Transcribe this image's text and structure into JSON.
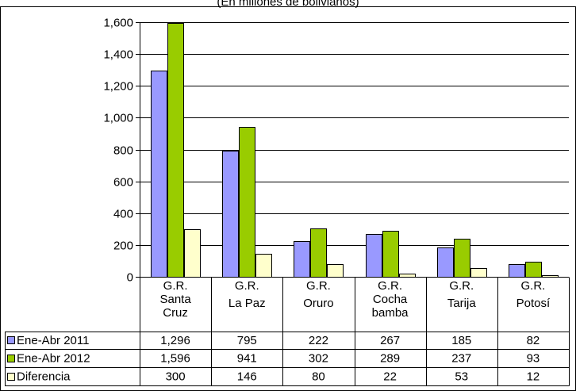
{
  "chart_data": {
    "type": "bar",
    "subtitle": "(En millones de bolivianos)",
    "title": "",
    "xlabel": "",
    "ylabel": "",
    "ylim": [
      0,
      1600
    ],
    "yticks": [
      0,
      200,
      400,
      600,
      800,
      1000,
      1200,
      1400,
      1600
    ],
    "ytick_labels": [
      "0",
      "200",
      "400",
      "600",
      "800",
      "1,000",
      "1,200",
      "1,400",
      "1,600"
    ],
    "grid": true,
    "legend": "data-table",
    "categories": [
      [
        "G.R.",
        "Santa",
        "Cruz"
      ],
      [
        "G.R.",
        "La Paz"
      ],
      [
        "G.R.",
        "Oruro"
      ],
      [
        "G.R.",
        "Cocha",
        "bamba"
      ],
      [
        "G.R.",
        "Tarija"
      ],
      [
        "G.R.",
        "Potosí"
      ]
    ],
    "series": [
      {
        "name": "Ene-Abr 2011",
        "color": "#9999ff",
        "values": [
          1296,
          795,
          222,
          267,
          185,
          82
        ],
        "labels": [
          "1,296",
          "795",
          "222",
          "267",
          "185",
          "82"
        ]
      },
      {
        "name": "Ene-Abr 2012",
        "color": "#99cc00",
        "values": [
          1596,
          941,
          302,
          289,
          237,
          93
        ],
        "labels": [
          "1,596",
          "941",
          "302",
          "289",
          "237",
          "93"
        ]
      },
      {
        "name": "Diferencia",
        "color": "#ffffcc",
        "values": [
          300,
          146,
          80,
          22,
          53,
          12
        ],
        "labels": [
          "300",
          "146",
          "80",
          "22",
          "53",
          "12"
        ]
      }
    ]
  }
}
